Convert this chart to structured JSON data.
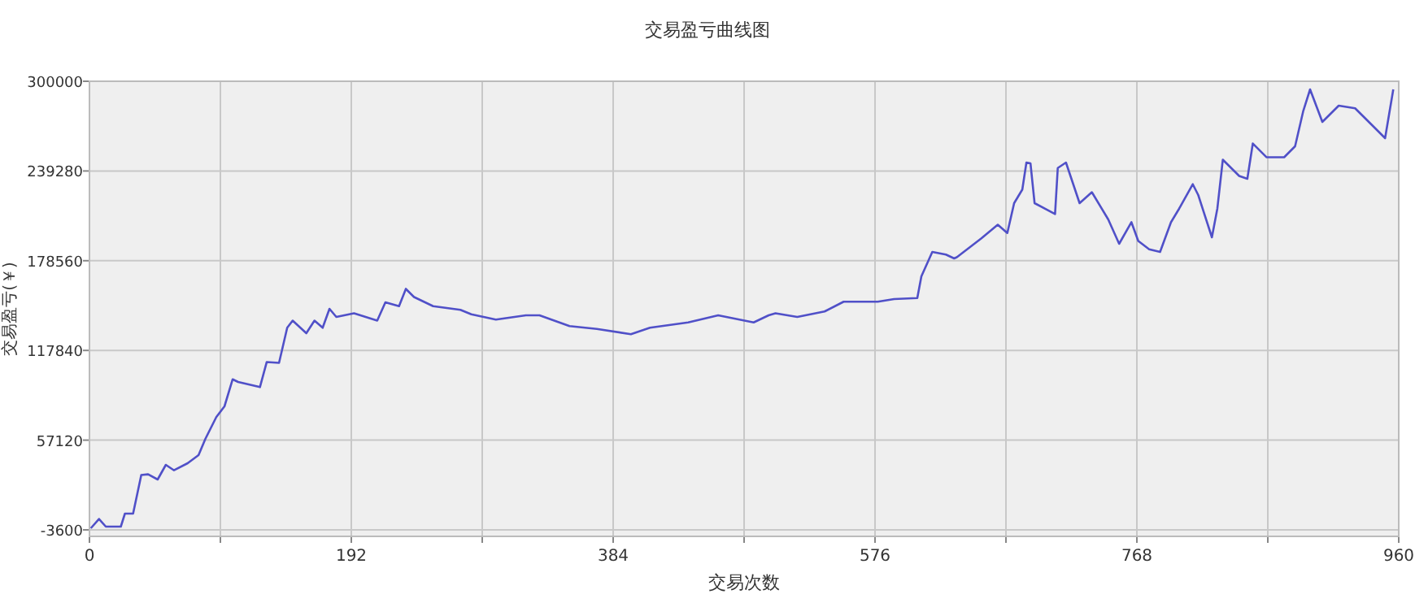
{
  "chart_data": {
    "type": "line",
    "title": "交易盈亏曲线图",
    "xlabel": "交易次数",
    "ylabel": "交易盈亏(￥)",
    "xlim": [
      0,
      960
    ],
    "ylim": [
      -8000,
      300000
    ],
    "xticks": [
      0,
      {
        "value": 96,
        "label": null
      },
      192,
      {
        "value": 288,
        "label": null
      },
      384,
      {
        "value": 480,
        "label": null
      },
      576,
      {
        "value": 672,
        "label": null
      },
      768,
      {
        "value": 864,
        "label": null
      },
      960
    ],
    "yticks": [
      -3600,
      57120,
      117840,
      178560,
      239280,
      300000
    ],
    "grid": true,
    "marker": "none",
    "line_style": "solid",
    "series": [
      {
        "color": "#5050c8",
        "x": [
          1,
          7,
          12,
          23,
          26,
          32,
          38,
          43,
          50,
          56,
          62,
          72,
          80,
          85,
          93,
          99,
          105,
          109,
          125,
          130,
          139,
          145,
          149,
          159,
          165,
          171,
          176,
          181,
          194,
          211,
          217,
          227,
          232,
          238,
          252,
          272,
          280,
          298,
          320,
          330,
          352,
          372,
          397,
          411,
          439,
          461,
          487,
          498,
          503,
          519,
          539,
          553,
          578,
          590,
          607,
          610,
          618,
          628,
          634,
          636,
          654,
          666,
          673,
          678,
          684,
          687,
          690,
          693,
          708,
          710,
          716,
          726,
          735,
          747,
          755,
          764,
          769,
          777,
          785,
          793,
          799,
          809,
          813,
          823,
          827,
          831,
          843,
          849,
          853,
          863,
          876,
          884,
          890,
          895,
          904,
          916,
          928,
          940,
          950,
          953,
          956
        ],
        "values": [
          -2500,
          3800,
          -1400,
          -1400,
          7400,
          7400,
          33500,
          34000,
          30500,
          40400,
          36700,
          41500,
          47000,
          58000,
          72700,
          80000,
          98300,
          96500,
          93000,
          110000,
          109400,
          133200,
          138000,
          129500,
          138000,
          133200,
          146000,
          140500,
          143000,
          138000,
          150400,
          147800,
          159500,
          154000,
          147800,
          145300,
          142300,
          138700,
          141600,
          141600,
          134300,
          132400,
          128800,
          133200,
          136800,
          141600,
          136800,
          141600,
          143000,
          140500,
          144200,
          150800,
          150800,
          152600,
          153300,
          168000,
          184500,
          182700,
          180100,
          180900,
          193700,
          202900,
          197300,
          217500,
          226700,
          245000,
          244400,
          217500,
          210200,
          241300,
          245000,
          217500,
          224900,
          206500,
          190000,
          204600,
          191900,
          186300,
          184500,
          204600,
          213800,
          230300,
          223000,
          194400,
          213800,
          246900,
          235900,
          234000,
          257900,
          248600,
          248600,
          256000,
          279900,
          294500,
          272500,
          283500,
          281700,
          270700,
          261500,
          278000,
          294500
        ]
      }
    ]
  }
}
